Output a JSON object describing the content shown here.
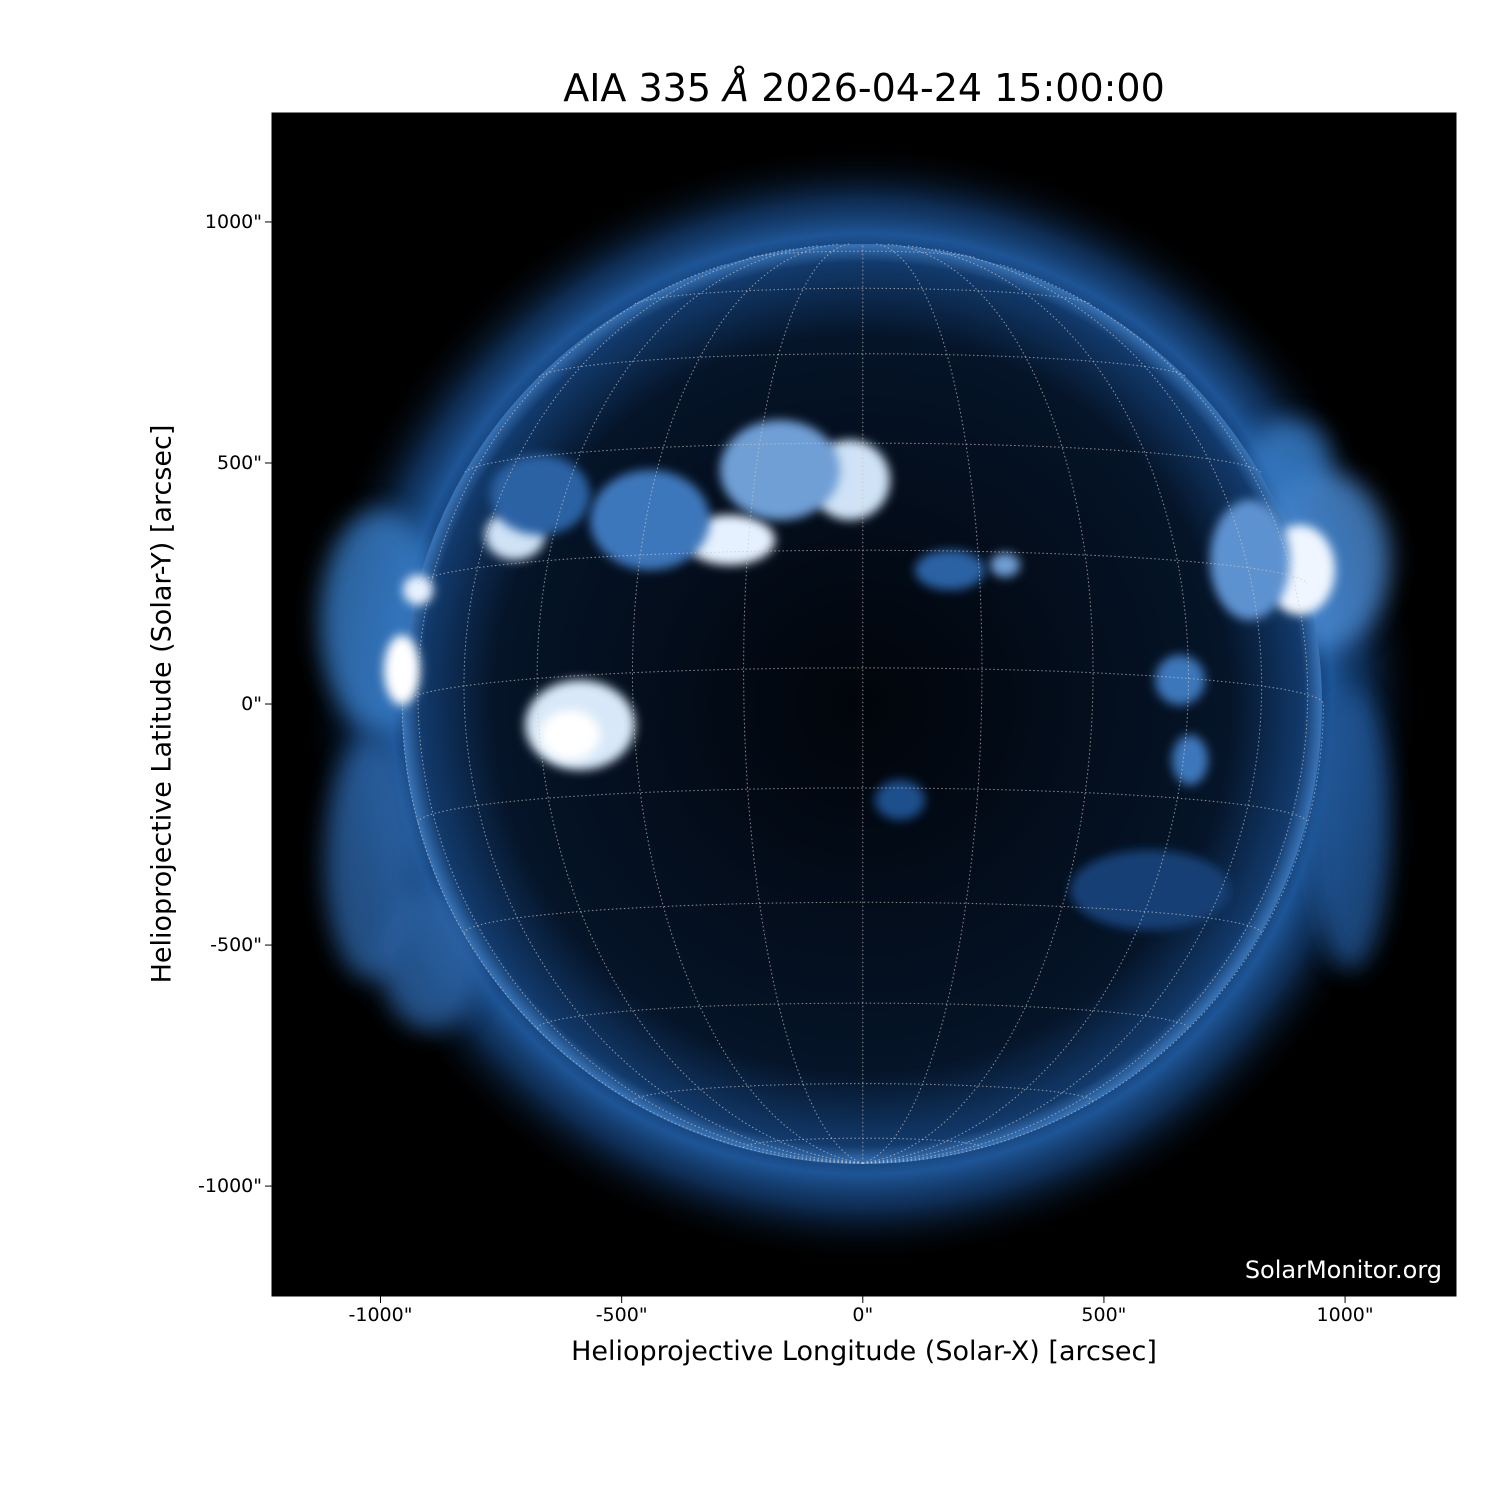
{
  "chart_data": {
    "type": "heatmap",
    "title": "AIA 335 Å 2026-04-24 15:00:00",
    "title_parts": {
      "instrument": "AIA 335",
      "unit": "Å",
      "datetime": "2026-04-24 15:00:00"
    },
    "xlabel": "Helioprojective Longitude (Solar-X) [arcsec]",
    "ylabel": "Helioprojective Latitude (Solar-Y) [arcsec]",
    "xlim": [
      -1225,
      1230
    ],
    "ylim": [
      -1228,
      1226
    ],
    "xticks": [
      -1000,
      -500,
      0,
      500,
      1000
    ],
    "xtick_labels": [
      "-1000\"",
      "-500\"",
      "0\"",
      "500\"",
      "1000\""
    ],
    "yticks": [
      1000,
      500,
      0,
      -500,
      -1000
    ],
    "ytick_labels": [
      "1000\"",
      "500\"",
      "0\"",
      "-500\"",
      "-1000\""
    ],
    "solar_radius_arcsec": 955,
    "grid": "heliographic lat/lon, 15° spacing, dotted",
    "colormap": [
      "#000000",
      "#0a2a55",
      "#2d69b0",
      "#8fb8e6",
      "#ffffff"
    ],
    "watermark": "SolarMonitor.org"
  }
}
